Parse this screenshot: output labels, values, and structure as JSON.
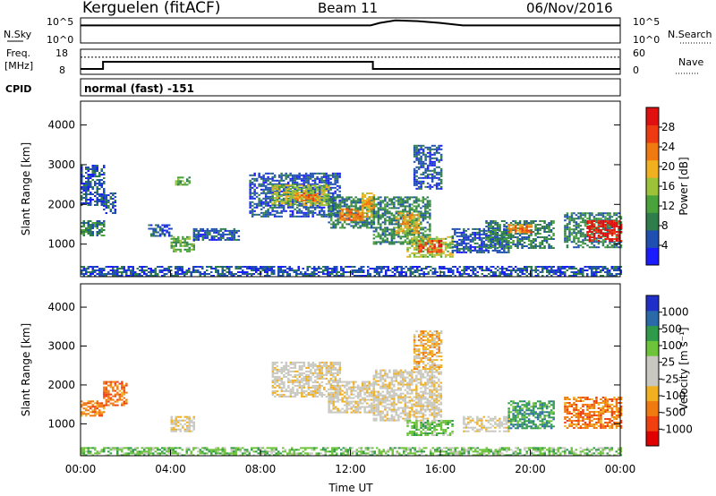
{
  "header": {
    "station": "Kerguelen (fitACF)",
    "beam": "Beam 11",
    "date": "06/Nov/2016"
  },
  "top_panels": {
    "nsky_label": "N.Sky",
    "nsearch_label": "N.Search",
    "nsky_ticks": [
      "10^5",
      "10^0"
    ],
    "nsearch_ticks": [
      "10^5",
      "10^0"
    ],
    "freq_label_1": "Freq.",
    "freq_label_2": "[MHz]",
    "freq_ticks": [
      "18",
      "8"
    ],
    "nave_label": "Nave",
    "nave_ticks": [
      "60",
      "0"
    ],
    "cpid_label": "CPID",
    "cpid_text": "normal (fast) -151"
  },
  "colors": {
    "power_scale": [
      "#1b1bff",
      "#1f4fb0",
      "#2f7d4a",
      "#4aa23a",
      "#9cc23a",
      "#f0b020",
      "#f07a10",
      "#ee3a10",
      "#e01010"
    ],
    "velocity_scale": [
      "#e00000",
      "#f04010",
      "#f07a10",
      "#f0b020",
      "#c8c8c0",
      "#c8c8c0",
      "#6dc33a",
      "#2f9a4a",
      "#2b6aa8",
      "#1f2fc8"
    ]
  },
  "chart_data": [
    {
      "type": "line",
      "name": "nsky-nsearch",
      "series": [
        {
          "name": "N.Sky",
          "x": [
            0,
            12.9,
            13.3,
            14,
            15,
            16,
            17,
            24
          ],
          "y": [
            7,
            7,
            8,
            9,
            8.7,
            8,
            7,
            7
          ]
        }
      ],
      "xlim": [
        0,
        24
      ]
    },
    {
      "type": "line",
      "name": "freq-nave",
      "series": [
        {
          "name": "Freq.",
          "x": [
            0,
            1,
            1,
            13,
            13,
            24
          ],
          "y": [
            9,
            9,
            13,
            13,
            9,
            9
          ]
        },
        {
          "name": "Nave",
          "x": [
            0,
            24
          ],
          "y": [
            41,
            41
          ]
        }
      ],
      "xlim": [
        0,
        24
      ]
    },
    {
      "type": "heatmap",
      "name": "power",
      "ylabel": "Slant Range [km]",
      "colorbar_label": "Power [dB]",
      "colorbar_ticks": [
        "28",
        "24",
        "20",
        "16",
        "12",
        "8",
        "4"
      ],
      "yticks": [
        "4000",
        "3000",
        "2000",
        "1000"
      ],
      "ylim": [
        180,
        4600
      ],
      "xlim": [
        0,
        24
      ],
      "regions": [
        {
          "t": [
            0.0,
            1.0
          ],
          "r": [
            1200,
            1600
          ],
          "level": 2
        },
        {
          "t": [
            0.0,
            1.0
          ],
          "r": [
            2000,
            3000
          ],
          "level": 1
        },
        {
          "t": [
            1.0,
            1.5
          ],
          "r": [
            1800,
            2300
          ],
          "level": 1
        },
        {
          "t": [
            3.0,
            4.0
          ],
          "r": [
            1200,
            1500
          ],
          "level": 1
        },
        {
          "t": [
            4.0,
            5.0
          ],
          "r": [
            800,
            1200
          ],
          "level": 3
        },
        {
          "t": [
            4.2,
            4.8
          ],
          "r": [
            2500,
            2700
          ],
          "level": 3
        },
        {
          "t": [
            5.0,
            7.0
          ],
          "r": [
            1100,
            1400
          ],
          "level": 1
        },
        {
          "t": [
            7.5,
            11.5
          ],
          "r": [
            1700,
            2800
          ],
          "level": 1
        },
        {
          "t": [
            8.5,
            11.0
          ],
          "r": [
            2000,
            2500
          ],
          "level": 4
        },
        {
          "t": [
            9.5,
            10.5
          ],
          "r": [
            2100,
            2300
          ],
          "level": 6
        },
        {
          "t": [
            11.0,
            13.0
          ],
          "r": [
            1400,
            2200
          ],
          "level": 2
        },
        {
          "t": [
            11.5,
            12.5
          ],
          "r": [
            1600,
            1900
          ],
          "level": 6
        },
        {
          "t": [
            12.5,
            13.0
          ],
          "r": [
            1700,
            2300
          ],
          "level": 5
        },
        {
          "t": [
            13.0,
            15.5
          ],
          "r": [
            1000,
            2200
          ],
          "level": 2
        },
        {
          "t": [
            14.0,
            15.0
          ],
          "r": [
            1300,
            1800
          ],
          "level": 5
        },
        {
          "t": [
            14.5,
            16.5
          ],
          "r": [
            700,
            1200
          ],
          "level": 4
        },
        {
          "t": [
            15.0,
            16.0
          ],
          "r": [
            800,
            1100
          ],
          "level": 7
        },
        {
          "t": [
            14.8,
            16.0
          ],
          "r": [
            2400,
            3500
          ],
          "level": 1
        },
        {
          "t": [
            16.5,
            19.0
          ],
          "r": [
            800,
            1400
          ],
          "level": 1
        },
        {
          "t": [
            18.0,
            21.0
          ],
          "r": [
            900,
            1600
          ],
          "level": 2
        },
        {
          "t": [
            19.0,
            20.0
          ],
          "r": [
            1300,
            1500
          ],
          "level": 6
        },
        {
          "t": [
            21.5,
            24.0
          ],
          "r": [
            900,
            1800
          ],
          "level": 2
        },
        {
          "t": [
            22.5,
            24.0
          ],
          "r": [
            1100,
            1600
          ],
          "level": 8
        },
        {
          "t": [
            0.0,
            24.0
          ],
          "r": [
            200,
            450
          ],
          "level": 1
        }
      ]
    },
    {
      "type": "heatmap",
      "name": "velocity",
      "ylabel": "Slant Range [km]",
      "colorbar_label": "Velocity [m s⁻¹]",
      "colorbar_ticks": [
        "1000",
        "500",
        "100",
        "25",
        "-25",
        "-100",
        "-500",
        "-1000"
      ],
      "yticks": [
        "4000",
        "3000",
        "2000",
        "1000"
      ],
      "xticks": [
        "00:00",
        "04:00",
        "08:00",
        "12:00",
        "16:00",
        "20:00",
        "00:00"
      ],
      "xlabel": "Time UT",
      "ylim": [
        180,
        4600
      ],
      "xlim": [
        0,
        24
      ],
      "regions": [
        {
          "t": [
            0.0,
            1.0
          ],
          "r": [
            1200,
            1600
          ],
          "level": 2
        },
        {
          "t": [
            1.0,
            2.0
          ],
          "r": [
            1500,
            2100
          ],
          "level": 2
        },
        {
          "t": [
            4.0,
            5.0
          ],
          "r": [
            800,
            1200
          ],
          "level": 4
        },
        {
          "t": [
            8.5,
            11.5
          ],
          "r": [
            1700,
            2600
          ],
          "level": 4
        },
        {
          "t": [
            11.0,
            13.0
          ],
          "r": [
            1300,
            2100
          ],
          "level": 4
        },
        {
          "t": [
            13.0,
            16.0
          ],
          "r": [
            1100,
            2400
          ],
          "level": 4
        },
        {
          "t": [
            14.5,
            16.5
          ],
          "r": [
            700,
            1100
          ],
          "level": 6
        },
        {
          "t": [
            14.8,
            16.0
          ],
          "r": [
            2400,
            3400
          ],
          "level": 3
        },
        {
          "t": [
            17.0,
            19.0
          ],
          "r": [
            800,
            1200
          ],
          "level": 4
        },
        {
          "t": [
            19.0,
            21.0
          ],
          "r": [
            900,
            1600
          ],
          "level": 7
        },
        {
          "t": [
            21.5,
            24.0
          ],
          "r": [
            900,
            1700
          ],
          "level": 2
        },
        {
          "t": [
            0.0,
            24.0
          ],
          "r": [
            200,
            400
          ],
          "level": 6
        }
      ]
    }
  ]
}
